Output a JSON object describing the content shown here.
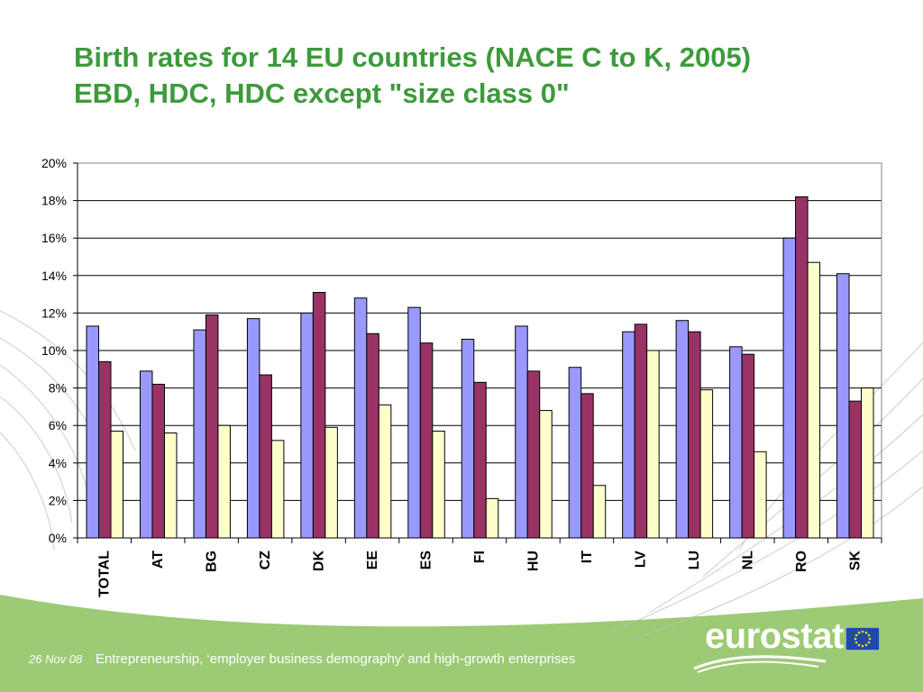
{
  "title": {
    "line1": "Birth rates for 14 EU countries (NACE C to K, 2005)",
    "line2": "EBD, HDC, HDC except \"size class 0\""
  },
  "footer": {
    "date": "26 Nov 08",
    "text": "Entrepreneurship, ‘employer business demography’ and high-growth enterprises",
    "logo_text": "eurostat"
  },
  "colors": {
    "title": "#3e9a3c",
    "footer_band": "#9dca74",
    "series": [
      "#9999ff",
      "#993366",
      "#ffffcc"
    ]
  },
  "chart_data": {
    "type": "bar",
    "categories": [
      "TOTAL",
      "AT",
      "BG",
      "CZ",
      "DK",
      "EE",
      "ES",
      "FI",
      "HU",
      "IT",
      "LV",
      "LU",
      "NL",
      "RO",
      "SK"
    ],
    "series": [
      {
        "values": [
          11.3,
          8.9,
          11.1,
          11.7,
          12.0,
          12.8,
          12.3,
          10.6,
          11.3,
          9.1,
          11.0,
          11.6,
          10.2,
          16.0,
          14.1
        ]
      },
      {
        "values": [
          9.4,
          8.2,
          11.9,
          8.7,
          13.1,
          10.9,
          10.4,
          8.3,
          8.9,
          7.7,
          11.4,
          11.0,
          9.8,
          18.2,
          7.3
        ]
      },
      {
        "values": [
          5.7,
          5.6,
          6.0,
          5.2,
          5.9,
          7.1,
          5.7,
          2.1,
          6.8,
          2.8,
          10.0,
          7.9,
          4.6,
          14.7,
          8.0
        ]
      }
    ],
    "ylim": [
      0,
      20
    ],
    "yticks": [
      "0%",
      "2%",
      "4%",
      "6%",
      "8%",
      "10%",
      "12%",
      "14%",
      "16%",
      "18%",
      "20%"
    ],
    "grid": true,
    "legend": "none"
  }
}
